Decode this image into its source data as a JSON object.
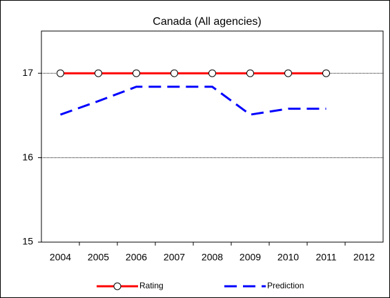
{
  "chart_data": {
    "type": "line",
    "title": "Canada (All agencies)",
    "categories": [
      "2004",
      "2005",
      "2006",
      "2007",
      "2008",
      "2009",
      "2010",
      "2011",
      "2012"
    ],
    "series": [
      {
        "name": "Rating",
        "color": "#ff0000",
        "values": [
          17,
          17,
          17,
          17,
          17,
          17,
          17,
          17,
          null
        ]
      },
      {
        "name": "Prediction",
        "color": "#0000ff",
        "values": [
          16.51,
          16.67,
          16.84,
          16.84,
          16.84,
          16.51,
          16.58,
          16.58,
          null
        ]
      }
    ],
    "ylim": [
      15,
      17.5
    ],
    "yticks": [
      15,
      16,
      17
    ],
    "grid": true
  }
}
